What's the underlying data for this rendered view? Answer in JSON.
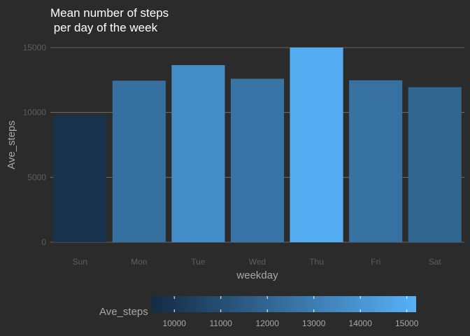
{
  "chart_data": {
    "type": "bar",
    "title_lines": [
      "Mean number of steps",
      " per day of the week"
    ],
    "xlabel": "weekday",
    "ylabel": "Ave_steps",
    "categories": [
      "Sun",
      "Mon",
      "Tue",
      "Wed",
      "Thu",
      "Fri",
      "Sat"
    ],
    "values": [
      9780,
      12450,
      13650,
      12600,
      15000,
      12480,
      11950
    ],
    "ylim": [
      0,
      15000
    ],
    "yticks": [
      0,
      5000,
      10000,
      15000
    ],
    "grid": true,
    "legend": {
      "title": "Ave_steps",
      "position": "bottom",
      "ticks": [
        10000,
        11000,
        12000,
        13000,
        14000,
        15000
      ],
      "range": [
        9500,
        15200
      ],
      "color_low": "#142b43",
      "color_high": "#56b1f7"
    }
  }
}
